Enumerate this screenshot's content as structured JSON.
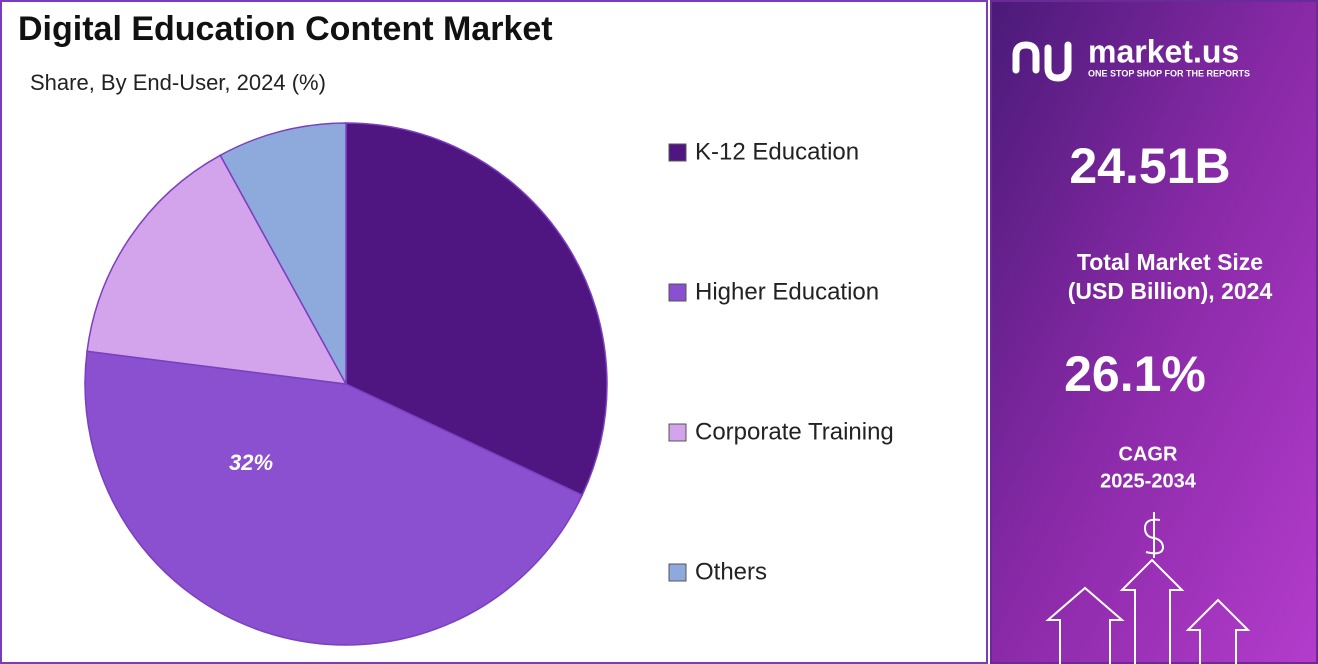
{
  "chart_data": {
    "type": "pie",
    "title": "Digital Education Content Market",
    "subtitle": "Share, By End-User, 2024 (%)",
    "categories": [
      "K-12 Education",
      "Higher Education",
      "Corporate Training",
      "Others"
    ],
    "values": [
      32,
      45,
      15,
      8
    ],
    "colors": [
      "#4f1682",
      "#8a50cf",
      "#d3a4ec",
      "#8eaadc"
    ],
    "annotations": [
      {
        "text": "32%"
      }
    ],
    "legend": "right"
  },
  "sidebar": {
    "brand": "market.us",
    "tagline": "ONE STOP SHOP FOR THE REPORTS",
    "market_size": "24.51B",
    "market_size_label": [
      "Total Market Size",
      "(USD Billion), 2024"
    ],
    "cagr": "26.1%",
    "cagr_label": "CAGR",
    "cagr_period": "2025-2034"
  }
}
